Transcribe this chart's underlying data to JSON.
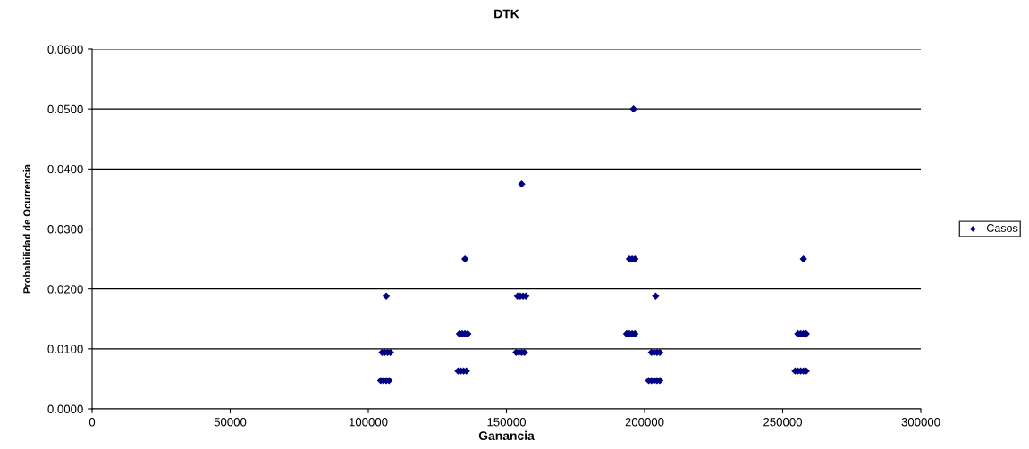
{
  "chart_data": {
    "type": "scatter",
    "title": "DTK",
    "xlabel": "Ganancia",
    "ylabel": "Probabilidad de Ocurrencia",
    "series": [
      {
        "name": "Casos",
        "color": "#000080",
        "x": [
          106500,
          105000,
          106000,
          107000,
          108000,
          104500,
          105500,
          106500,
          107500,
          135000,
          133000,
          134000,
          135000,
          136000,
          132500,
          133500,
          134500,
          135500,
          155500,
          154000,
          155000,
          156000,
          157000,
          153500,
          154500,
          155500,
          156500,
          196000,
          194500,
          195500,
          196500,
          193500,
          194500,
          195500,
          196500,
          204000,
          202500,
          203500,
          204500,
          205500,
          201500,
          202500,
          203500,
          204500,
          205500,
          257500,
          255500,
          256500,
          257500,
          258500,
          254500,
          255500,
          256500,
          257500,
          258500
        ],
        "values": [
          0.0188,
          0.0094,
          0.0094,
          0.0094,
          0.0094,
          0.0047,
          0.0047,
          0.0047,
          0.0047,
          0.025,
          0.0125,
          0.0125,
          0.0125,
          0.0125,
          0.0063,
          0.0063,
          0.0063,
          0.0063,
          0.0375,
          0.0188,
          0.0188,
          0.0188,
          0.0188,
          0.0094,
          0.0094,
          0.0094,
          0.0094,
          0.05,
          0.025,
          0.025,
          0.025,
          0.0125,
          0.0125,
          0.0125,
          0.0125,
          0.0188,
          0.0094,
          0.0094,
          0.0094,
          0.0094,
          0.0047,
          0.0047,
          0.0047,
          0.0047,
          0.0047,
          0.025,
          0.0125,
          0.0125,
          0.0125,
          0.0125,
          0.0063,
          0.0063,
          0.0063,
          0.0063,
          0.0063
        ]
      }
    ],
    "xlim": [
      0,
      300000
    ],
    "xticks": [
      0,
      50000,
      100000,
      150000,
      200000,
      250000,
      300000
    ],
    "ylim": [
      0,
      0.06
    ],
    "yticks": [
      {
        "value": 0,
        "label": "0.0000"
      },
      {
        "value": 0.01,
        "label": "0.0100"
      },
      {
        "value": 0.02,
        "label": "0.0200"
      },
      {
        "value": 0.03,
        "label": "0.0300"
      },
      {
        "value": 0.04,
        "label": "0.0400"
      },
      {
        "value": 0.05,
        "label": "0.0500"
      },
      {
        "value": 0.06,
        "label": "0.0600"
      }
    ],
    "grid": "y",
    "legend": "right",
    "marker": "diamond"
  }
}
